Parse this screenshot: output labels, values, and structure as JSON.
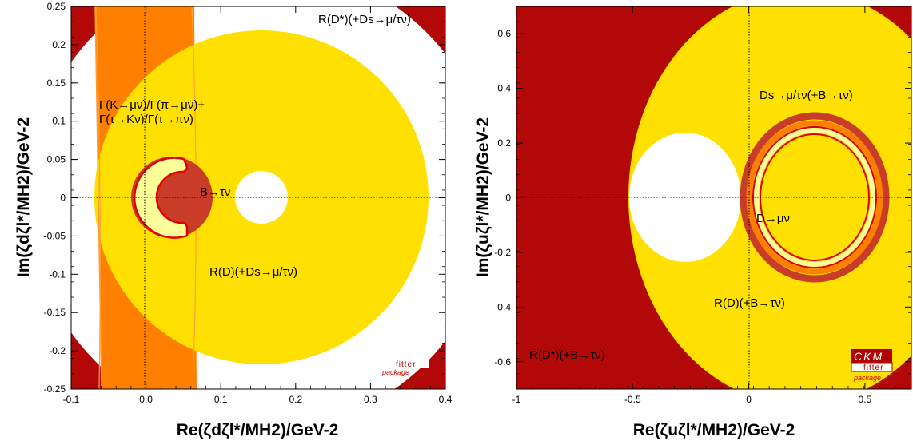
{
  "colors": {
    "excluded": "#b30808",
    "yellow": "#ffe000",
    "orange": "#ff8000",
    "light": "#ffff9a",
    "dark_ring": "#c83c28",
    "contour": "#e00000",
    "logo_red": "#b00000"
  },
  "chart_data": [
    {
      "type": "contour",
      "panel": "left",
      "xlabel": "Re(ζdζl*/MH2)/GeV-2",
      "ylabel": "Im(ζdζl*/MH2)/GeV-2",
      "xlim": [
        -0.1,
        0.4
      ],
      "ylim": [
        -0.25,
        0.25
      ],
      "x_ticks": [
        "-0.1",
        "0.0",
        "0.1",
        "0.2",
        "0.3",
        "0.4"
      ],
      "y_ticks": [
        "0.25",
        "0.2",
        "0.15",
        "0.1",
        "0.05",
        "0",
        "-0.05",
        "-0.1",
        "-0.15",
        "-0.2",
        "-0.25"
      ],
      "annotations": [
        "R(D*)(+Ds→μ/τν)",
        "Γ(K→μν)/Γ(π→μν)+",
        "Γ(τ→Kν)/Γ(τ→πν)",
        "B→τν",
        "R(D)(+Ds→μ/τν)"
      ],
      "regions": [
        {
          "name": "R(D)(+Ds→μ/τν) allowed disk",
          "center": [
            0.155,
            0.0
          ],
          "radius": 0.22
        },
        {
          "name": "B→τν excluded hole",
          "center": [
            0.153,
            0.0
          ],
          "radius": 0.025
        },
        {
          "name": "Γ(K→μν)/Γ(π→μν) band",
          "x_min": -0.065,
          "x_max": 0.065
        },
        {
          "name": "B→τν allowed crescent",
          "center": [
            0.034,
            0.0
          ],
          "outer_radius": 0.053,
          "inner_radius": 0.025
        }
      ]
    },
    {
      "type": "contour",
      "panel": "right",
      "xlabel": "Re(ζuζl*/MH2)/GeV-2",
      "ylabel": "Im(ζuζl*/MH2)/GeV-2",
      "xlim": [
        -1.0,
        0.7
      ],
      "ylim": [
        -0.7,
        0.7
      ],
      "x_ticks": [
        "-1",
        "-0.5",
        "0",
        "0.5"
      ],
      "y_ticks": [
        "0.6",
        "0.4",
        "0.2",
        "0",
        "-0.2",
        "-0.4",
        "-0.6"
      ],
      "annotations": [
        "Ds→μ/τν(+B→τν)",
        "D→μν",
        "R(D)(+B→τν)",
        "R(D*)(+B→τν)"
      ],
      "regions": [
        {
          "name": "R(D)(+B→τν) allowed disk",
          "center": [
            0.38,
            0.0
          ],
          "radius": 0.73
        },
        {
          "name": "excluded hole",
          "center": [
            -0.28,
            0.0
          ],
          "radius_x": 0.15,
          "radius_y": 0.23
        },
        {
          "name": "Ds→μ/τν ring",
          "center": [
            0.29,
            0.0
          ],
          "radius_x": 0.3,
          "radius_y": 0.28
        }
      ]
    }
  ],
  "logo": {
    "line1": "CKM",
    "line2": "fitter",
    "line3": "package"
  }
}
